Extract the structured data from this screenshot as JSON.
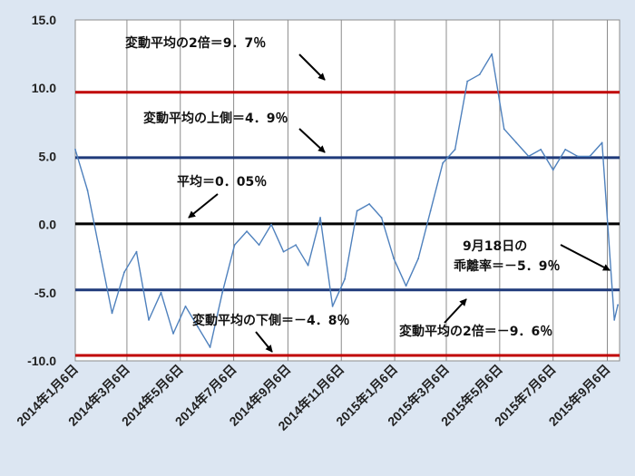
{
  "chart_data": {
    "type": "line",
    "title": "",
    "xlabel": "",
    "ylabel": "",
    "ylim": [
      -10,
      15
    ],
    "y_ticks": [
      "15.0",
      "10.0",
      "5.0",
      "0.0",
      "-5.0",
      "-10.0"
    ],
    "x_tick_labels": [
      "2014年1月6日",
      "2014年3月6日",
      "2014年5月6日",
      "2014年7月6日",
      "2014年9月6日",
      "2014年11月6日",
      "2015年1月6日",
      "2015年3月6日",
      "2015年5月6日",
      "2015年7月6日",
      "2015年9月6日"
    ],
    "grid": "vertical",
    "legend": "none",
    "series": [
      {
        "color": "#4f81bd",
        "x": [
          "2014-01-06",
          "2014-01-20",
          "2014-02-03",
          "2014-02-17",
          "2014-03-03",
          "2014-03-17",
          "2014-03-31",
          "2014-04-14",
          "2014-04-28",
          "2014-05-12",
          "2014-05-26",
          "2014-06-09",
          "2014-06-23",
          "2014-07-07",
          "2014-07-21",
          "2014-08-04",
          "2014-08-18",
          "2014-09-01",
          "2014-09-15",
          "2014-09-29",
          "2014-10-13",
          "2014-10-27",
          "2014-11-10",
          "2014-11-24",
          "2014-12-08",
          "2014-12-22",
          "2015-01-05",
          "2015-01-19",
          "2015-02-02",
          "2015-02-16",
          "2015-03-02",
          "2015-03-16",
          "2015-03-30",
          "2015-04-13",
          "2015-04-27",
          "2015-05-11",
          "2015-05-25",
          "2015-06-08",
          "2015-06-22",
          "2015-07-06",
          "2015-07-20",
          "2015-08-03",
          "2015-08-17",
          "2015-08-31",
          "2015-09-14",
          "2015-09-18"
        ],
        "y": [
          5.5,
          2.5,
          -2.0,
          -6.5,
          -3.5,
          -2.0,
          -7.0,
          -5.0,
          -8.0,
          -6.0,
          -7.5,
          -9.0,
          -5.0,
          -1.5,
          -0.5,
          -1.5,
          0.0,
          -2.0,
          -1.5,
          -3.0,
          0.5,
          -6.0,
          -4.0,
          1.0,
          1.5,
          0.5,
          -2.5,
          -4.5,
          -2.5,
          1.0,
          4.5,
          5.5,
          10.5,
          11.0,
          12.5,
          7.0,
          6.0,
          5.0,
          5.5,
          4.0,
          5.5,
          5.0,
          5.0,
          6.0,
          -7.0,
          -5.9
        ]
      }
    ],
    "reference_lines": [
      {
        "value": 9.7,
        "color": "#c00000",
        "label": "変動平均の2倍＝9．7％"
      },
      {
        "value": 4.9,
        "color": "#1f3a7a",
        "label": "変動平均の上側＝4．9％"
      },
      {
        "value": 0.05,
        "color": "#000000",
        "label": "平均＝0．05％"
      },
      {
        "value": -4.8,
        "color": "#1f3a7a",
        "label": "変動平均の下側＝－4．8％"
      },
      {
        "value": -9.6,
        "color": "#c00000",
        "label": "変動平均の2倍＝－9．6％"
      }
    ],
    "annotations": [
      {
        "line1": "9月18日の",
        "line2": "乖離率＝－5．9％"
      }
    ]
  }
}
